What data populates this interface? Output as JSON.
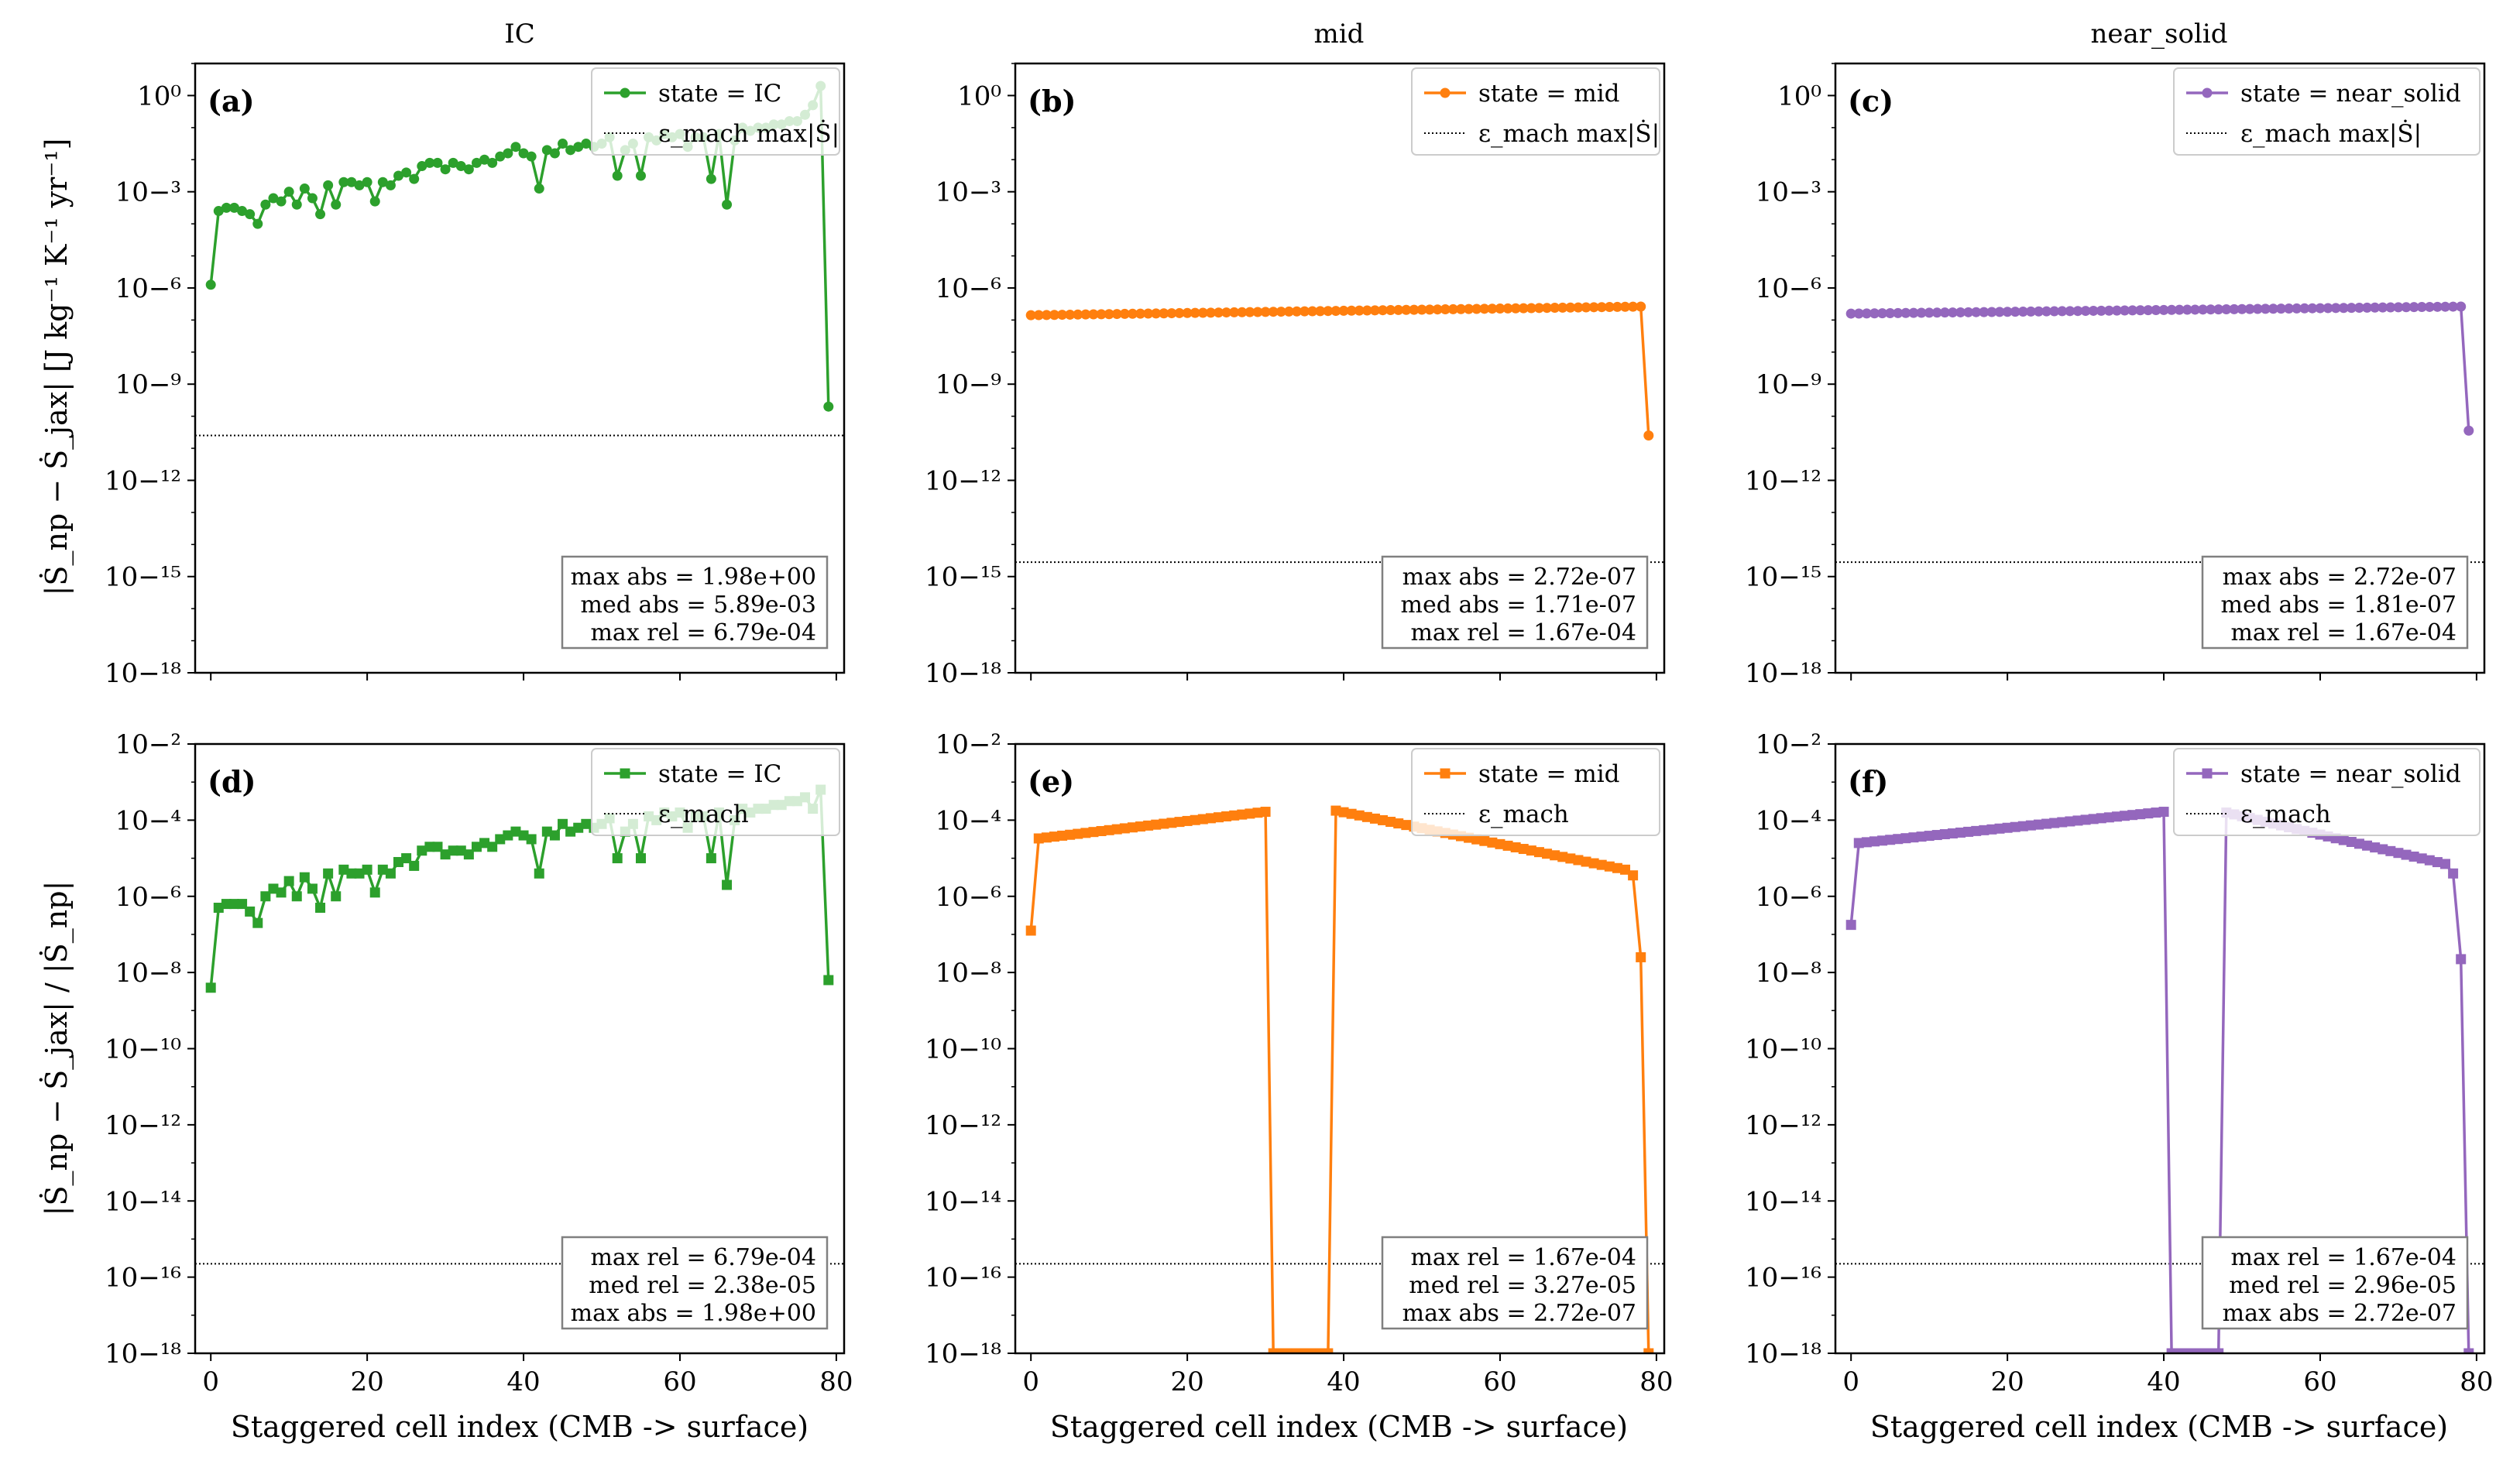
{
  "figure": {
    "row1_ylabel": "|Ṡ_np − Ṡ_jax|  [J kg⁻¹ K⁻¹ yr⁻¹]",
    "row2_ylabel": "|Ṡ_np − Ṡ_jax| / |Ṡ_np|",
    "xlabel": "Staggered cell index (CMB -> surface)"
  },
  "colors": {
    "IC": "#2ca02c",
    "mid": "#ff7f0e",
    "near_solid": "#9467bd"
  },
  "chart_data": [
    {
      "id": "a",
      "type": "line",
      "panel_label": "(a)",
      "column_title": "IC",
      "yscale": "log",
      "ylim_exp": [
        -18,
        1
      ],
      "xlim": [
        -2,
        81
      ],
      "yticks_exp": [
        0,
        -3,
        -6,
        -9,
        -12,
        -15,
        -18
      ],
      "xticks": [
        0,
        20,
        40,
        60,
        80
      ],
      "marker": "circle",
      "color_key": "IC",
      "legend": {
        "series": "state = IC",
        "ref": "ε_mach max|Ṡ|"
      },
      "reference_line_exp": -10.6,
      "stats": [
        "max abs = 1.98e+00",
        "med abs = 5.89e-03",
        "max rel = 6.79e-04"
      ],
      "series": [
        {
          "name": "state = IC",
          "x_start": 0,
          "log10_values": [
            -5.9,
            -3.6,
            -3.5,
            -3.5,
            -3.6,
            -3.7,
            -4.0,
            -3.4,
            -3.2,
            -3.3,
            -3.0,
            -3.4,
            -2.9,
            -3.2,
            -3.7,
            -2.8,
            -3.4,
            -2.7,
            -2.7,
            -2.8,
            -2.7,
            -3.3,
            -2.7,
            -2.8,
            -2.5,
            -2.4,
            -2.6,
            -2.2,
            -2.1,
            -2.1,
            -2.3,
            -2.1,
            -2.2,
            -2.3,
            -2.1,
            -2.0,
            -2.1,
            -1.9,
            -1.8,
            -1.6,
            -1.8,
            -1.9,
            -2.9,
            -1.7,
            -1.8,
            -1.5,
            -1.7,
            -1.6,
            -1.5,
            -1.6,
            -1.5,
            -1.3,
            -2.5,
            -1.7,
            -1.5,
            -2.5,
            -1.3,
            -1.4,
            -1.2,
            -1.3,
            -1.2,
            -1.6,
            -1.3,
            -1.3,
            -2.6,
            -1.2,
            -3.4,
            -1.4,
            -1.0,
            -1.1,
            -1.0,
            -1.0,
            -0.9,
            -0.9,
            -0.8,
            -0.8,
            -0.6,
            -0.3,
            0.3,
            -9.7
          ]
        }
      ]
    },
    {
      "id": "b",
      "type": "line",
      "panel_label": "(b)",
      "column_title": "mid",
      "yscale": "log",
      "ylim_exp": [
        -18,
        1
      ],
      "xlim": [
        -2,
        81
      ],
      "yticks_exp": [
        0,
        -3,
        -6,
        -9,
        -12,
        -15,
        -18
      ],
      "xticks": [
        0,
        20,
        40,
        60,
        80
      ],
      "marker": "circle",
      "color_key": "mid",
      "legend": {
        "series": "state = mid",
        "ref": "ε_mach max|Ṡ|"
      },
      "reference_line_exp": -14.55,
      "stats": [
        "max abs = 2.72e-07",
        "med abs = 1.71e-07",
        "max rel = 1.67e-04"
      ],
      "series": [
        {
          "name": "state = mid",
          "x_start": 0,
          "profile": {
            "count": 79,
            "start": -6.85,
            "end": -6.58,
            "last": -10.6
          }
        }
      ]
    },
    {
      "id": "c",
      "type": "line",
      "panel_label": "(c)",
      "column_title": "near_solid",
      "yscale": "log",
      "ylim_exp": [
        -18,
        1
      ],
      "xlim": [
        -2,
        81
      ],
      "yticks_exp": [
        0,
        -3,
        -6,
        -9,
        -12,
        -15,
        -18
      ],
      "xticks": [
        0,
        20,
        40,
        60,
        80
      ],
      "marker": "circle",
      "color_key": "near_solid",
      "legend": {
        "series": "state = near_solid",
        "ref": "ε_mach max|Ṡ|"
      },
      "reference_line_exp": -14.55,
      "stats": [
        "max abs = 2.72e-07",
        "med abs = 1.81e-07",
        "max rel = 1.67e-04"
      ],
      "series": [
        {
          "name": "state = near_solid",
          "x_start": 0,
          "profile": {
            "count": 79,
            "start": -6.8,
            "end": -6.58,
            "last": -10.45
          }
        }
      ]
    },
    {
      "id": "d",
      "type": "line",
      "panel_label": "(d)",
      "column_title": "",
      "yscale": "log",
      "ylim_exp": [
        -18,
        -2
      ],
      "xlim": [
        -2,
        81
      ],
      "yticks_exp": [
        -2,
        -4,
        -6,
        -8,
        -10,
        -12,
        -14,
        -16,
        -18
      ],
      "xticks": [
        0,
        20,
        40,
        60,
        80
      ],
      "marker": "square",
      "color_key": "IC",
      "legend": {
        "series": "state = IC",
        "ref": "ε_mach"
      },
      "reference_line_exp": -15.65,
      "stats": [
        "max rel = 6.79e-04",
        "med rel = 2.38e-05",
        "max abs = 1.98e+00"
      ],
      "series": [
        {
          "name": "state = IC",
          "x_start": 0,
          "log10_values": [
            -8.4,
            -6.3,
            -6.2,
            -6.2,
            -6.2,
            -6.4,
            -6.7,
            -6.0,
            -5.8,
            -5.9,
            -5.6,
            -6.0,
            -5.5,
            -5.8,
            -6.3,
            -5.4,
            -6.0,
            -5.3,
            -5.4,
            -5.4,
            -5.3,
            -5.9,
            -5.3,
            -5.4,
            -5.1,
            -5.0,
            -5.2,
            -4.8,
            -4.7,
            -4.7,
            -4.9,
            -4.8,
            -4.8,
            -4.9,
            -4.7,
            -4.6,
            -4.7,
            -4.5,
            -4.4,
            -4.3,
            -4.4,
            -4.5,
            -5.4,
            -4.3,
            -4.4,
            -4.1,
            -4.3,
            -4.2,
            -4.1,
            -4.2,
            -4.1,
            -3.95,
            -5.0,
            -4.3,
            -4.1,
            -5.0,
            -3.9,
            -4.0,
            -3.8,
            -3.9,
            -3.8,
            -4.2,
            -3.9,
            -3.9,
            -5.0,
            -3.8,
            -5.7,
            -4.0,
            -3.7,
            -3.8,
            -3.7,
            -3.7,
            -3.6,
            -3.6,
            -3.5,
            -3.5,
            -3.4,
            -3.7,
            -3.2,
            -8.2
          ]
        }
      ]
    },
    {
      "id": "e",
      "type": "line",
      "panel_label": "(e)",
      "column_title": "",
      "yscale": "log",
      "ylim_exp": [
        -18,
        -2
      ],
      "xlim": [
        -2,
        81
      ],
      "yticks_exp": [
        -2,
        -4,
        -6,
        -8,
        -10,
        -12,
        -14,
        -16,
        -18
      ],
      "xticks": [
        0,
        20,
        40,
        60,
        80
      ],
      "marker": "square",
      "color_key": "mid",
      "legend": {
        "series": "state = mid",
        "ref": "ε_mach"
      },
      "reference_line_exp": -15.65,
      "stats": [
        "max rel = 1.67e-04",
        "med rel = 3.27e-05",
        "max abs = 2.72e-07"
      ],
      "series": [
        {
          "name": "state = mid",
          "x_start": 0,
          "segments": [
            {
              "count": 1,
              "start": -6.9,
              "end": -6.9
            },
            {
              "count": 30,
              "start": -4.48,
              "end": -3.78
            },
            {
              "count": 8,
              "start": -18,
              "end": -18
            },
            {
              "count": 38,
              "start": -3.75,
              "end": -5.3
            },
            {
              "count": 1,
              "start": -5.45,
              "end": -5.45
            },
            {
              "count": 1,
              "start": -7.6,
              "end": -7.6
            },
            {
              "count": 1,
              "start": -18,
              "end": -18
            }
          ]
        }
      ]
    },
    {
      "id": "f",
      "type": "line",
      "panel_label": "(f)",
      "column_title": "",
      "yscale": "log",
      "ylim_exp": [
        -18,
        -2
      ],
      "xlim": [
        -2,
        81
      ],
      "yticks_exp": [
        -2,
        -4,
        -6,
        -8,
        -10,
        -12,
        -14,
        -16,
        -18
      ],
      "xticks": [
        0,
        20,
        40,
        60,
        80
      ],
      "marker": "square",
      "color_key": "near_solid",
      "legend": {
        "series": "state = near_solid",
        "ref": "ε_mach"
      },
      "reference_line_exp": -15.65,
      "stats": [
        "max rel = 1.67e-04",
        "med rel = 2.96e-05",
        "max abs = 2.72e-07"
      ],
      "series": [
        {
          "name": "state = near_solid",
          "x_start": 0,
          "segments": [
            {
              "count": 1,
              "start": -6.75,
              "end": -6.75
            },
            {
              "count": 40,
              "start": -4.6,
              "end": -3.78
            },
            {
              "count": 7,
              "start": -18,
              "end": -18
            },
            {
              "count": 29,
              "start": -3.8,
              "end": -5.15
            },
            {
              "count": 1,
              "start": -5.4,
              "end": -5.4
            },
            {
              "count": 1,
              "start": -7.65,
              "end": -7.65
            },
            {
              "count": 1,
              "start": -18,
              "end": -18
            }
          ]
        }
      ]
    }
  ]
}
